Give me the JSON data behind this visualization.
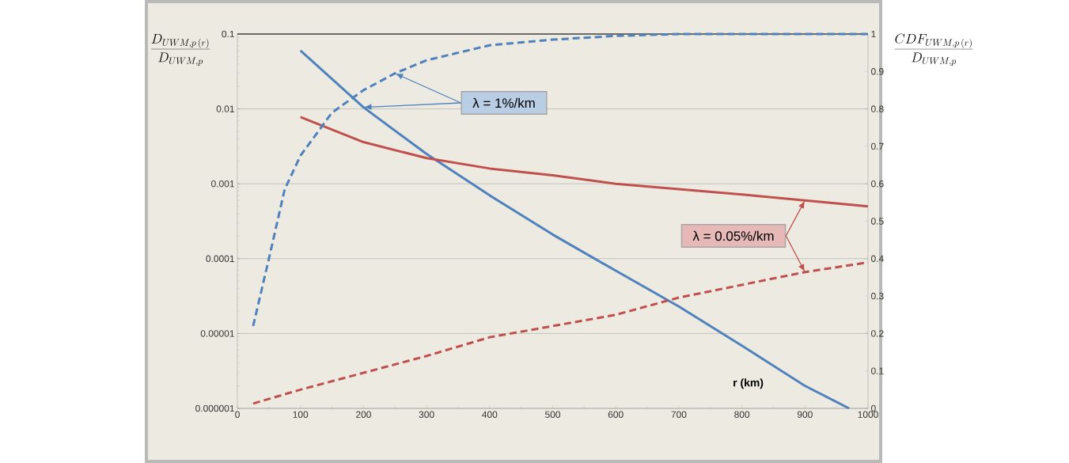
{
  "chart_data": {
    "type": "line",
    "xlabel": "r (km)",
    "ylabel": "\\frac{D_{UWM,p\\,(r)}}{D_{UWM,p}}",
    "y2label": "\\frac{CDF_{UWM,p\\,(r)}}{D_{UWM,p}}",
    "xlim": [
      0,
      1000
    ],
    "xticks": [
      0,
      100,
      200,
      300,
      400,
      500,
      600,
      700,
      800,
      900,
      1000
    ],
    "ylim": [
      1e-06,
      0.1
    ],
    "yticks": [
      {
        "value": 1e-06,
        "label": "0.000001"
      },
      {
        "value": 1e-05,
        "label": "0.00001"
      },
      {
        "value": 0.0001,
        "label": "0.0001"
      },
      {
        "value": 0.001,
        "label": "0.001"
      },
      {
        "value": 0.01,
        "label": "0.01"
      },
      {
        "value": 0.1,
        "label": "0.1"
      }
    ],
    "y2lim": [
      0,
      1
    ],
    "y2ticks": [
      0,
      0.1,
      0.2,
      0.3,
      0.4,
      0.5,
      0.6,
      0.7,
      0.8,
      0.9,
      1
    ],
    "log": "y",
    "grid": "y",
    "marker": "none",
    "series": [
      {
        "color": "#4f81bd",
        "line_style": "solid",
        "x": [
          100,
          200,
          300,
          400,
          500,
          600,
          700,
          800,
          900,
          970
        ],
        "values": [
          0.06,
          0.0105,
          0.0025,
          0.0007,
          0.00021,
          6.9e-05,
          2.3e-05,
          6.9e-06,
          2e-06,
          1e-06
        ]
      },
      {
        "color": "#c0504d",
        "line_style": "solid",
        "x": [
          100,
          200,
          300,
          400,
          500,
          600,
          700,
          800,
          900,
          1000
        ],
        "values": [
          0.0078,
          0.0036,
          0.0022,
          0.0016,
          0.0013,
          0.001,
          0.00085,
          0.00072,
          0.0006,
          0.0005
        ]
      },
      {
        "color": "#4f81bd",
        "line_style": "dashed",
        "axis": "y2",
        "x": [
          25,
          50,
          75,
          100,
          150,
          200,
          250,
          300,
          400,
          500,
          600,
          700,
          800,
          900,
          1000
        ],
        "values": [
          0.22,
          0.4,
          0.585,
          0.675,
          0.79,
          0.85,
          0.895,
          0.93,
          0.97,
          0.985,
          0.995,
          1,
          1,
          1,
          1
        ]
      },
      {
        "color": "#c0504d",
        "line_style": "dashed",
        "axis": "y2",
        "x": [
          25,
          100,
          200,
          300,
          400,
          500,
          600,
          700,
          800,
          900,
          1000
        ],
        "values": [
          0.013,
          0.05,
          0.095,
          0.14,
          0.19,
          0.22,
          0.25,
          0.296,
          0.33,
          0.364,
          0.39
        ]
      }
    ],
    "annotations": [
      "λ = 1%/km",
      "λ = 0.05%/km"
    ]
  }
}
